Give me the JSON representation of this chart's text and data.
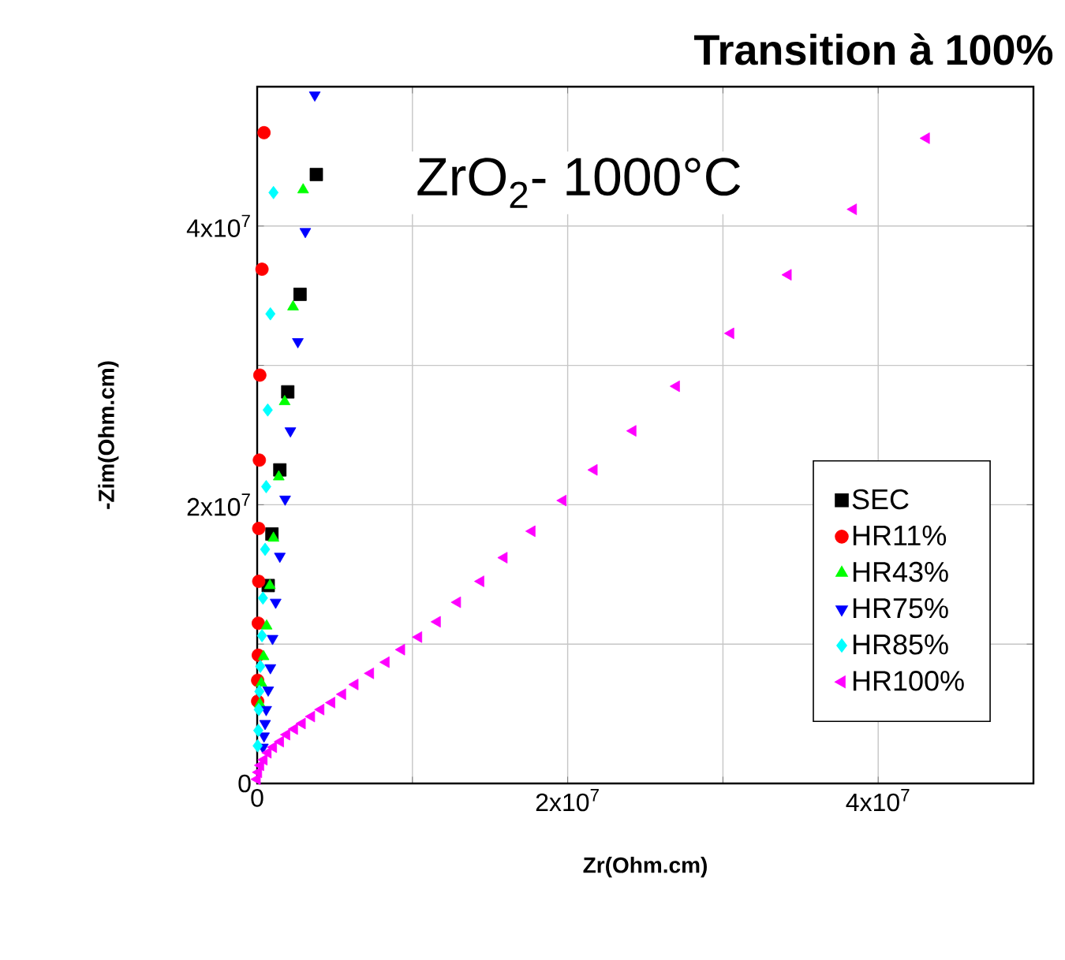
{
  "chart_data": {
    "type": "scatter",
    "title": "**Transition à 100%**",
    "xlabel": "**Zr(Ohm.cm)**",
    "ylabel": "**-Zim(Ohm.cm)**",
    "annotations": [
      "ZrO$_{2}$- 1000°C"
    ],
    "xlim": [
      0,
      50000000.0
    ],
    "ylim": [
      0,
      50000000.0
    ],
    "xticks": [
      0,
      {
        "value": 10000000.0,
        "label": null
      },
      {
        "value": 20000000.0,
        "label": "2x10$^{7}$"
      },
      {
        "value": 30000000.0,
        "label": null
      },
      {
        "value": 40000000.0,
        "label": "4x10$^{7}$"
      },
      {
        "value": 50000000.0,
        "label": null
      }
    ],
    "yticks": [
      0,
      {
        "value": 10000000.0,
        "label": null
      },
      {
        "value": 20000000.0,
        "label": "2x10$^{7}$"
      },
      {
        "value": 30000000.0,
        "label": null
      },
      {
        "value": 40000000.0,
        "label": "4x10$^{7}$"
      },
      {
        "value": 50000000.0,
        "label": null
      }
    ],
    "grid": true,
    "legend": "right",
    "series": [
      {
        "name": "SEC",
        "color": "#000000",
        "marker": "square",
        "x": [
          3810000.0,
          2760000.0,
          1970000.0,
          1460000.0,
          950000.0,
          710000.0
        ],
        "values": [
          43700000.0,
          35100000.0,
          28100000.0,
          22500000.0,
          17900000.0,
          14200000.0
        ]
      },
      {
        "name": "HR11%",
        "color": "#ff0000",
        "marker": "circle",
        "x": [
          440000.0,
          310000.0,
          170000.0,
          140000.0,
          100000.0,
          100000.0,
          70000.0,
          70000.0,
          30000.0,
          30000.0
        ],
        "values": [
          46700000.0,
          36900000.0,
          29300000.0,
          23200000.0,
          18300000.0,
          14500000.0,
          11500000.0,
          9200000.0,
          7400000.0,
          5900000.0
        ]
      },
      {
        "name": "HR43%",
        "color": "#00ff00",
        "marker": "triangle",
        "x": [
          2960000.0,
          2310000.0,
          1770000.0,
          1390000.0,
          1050000.0,
          820000.0,
          610000.0,
          410000.0,
          270000.0,
          170000.0
        ],
        "values": [
          42600000.0,
          34200000.0,
          27400000.0,
          22000000.0,
          17600000.0,
          14200000.0,
          11300000.0,
          9100000.0,
          7200000.0,
          5700000.0
        ]
      },
      {
        "name": "HR75%",
        "color": "#0000ff",
        "marker": "triangle-down",
        "x": [
          3710000.0,
          3100000.0,
          2620000.0,
          2140000.0,
          1800000.0,
          1460000.0,
          1190000.0,
          990000.0,
          850000.0,
          710000.0,
          580000.0,
          510000.0,
          440000.0,
          370000.0
        ],
        "values": [
          49400000.0,
          39600000.0,
          31700000.0,
          25300000.0,
          20400000.0,
          16300000.0,
          13000000.0,
          10400000.0,
          8300000.0,
          6700000.0,
          5300000.0,
          4300000.0,
          3400000.0,
          2600000.0
        ]
      },
      {
        "name": "HR85%",
        "color": "#00ffff",
        "marker": "diamond",
        "x": [
          1050000.0,
          850000.0,
          680000.0,
          580000.0,
          510000.0,
          370000.0,
          310000.0,
          200000.0,
          140000.0,
          100000.0,
          70000.0,
          30000.0
        ],
        "values": [
          42400000.0,
          33700000.0,
          26800000.0,
          21300000.0,
          16800000.0,
          13300000.0,
          10600000.0,
          8400000.0,
          6600000.0,
          5300000.0,
          3800000.0,
          2700000.0
        ]
      },
      {
        "name": "HR100%",
        "color": "#ff00ff",
        "marker": "triangle-left",
        "x": [
          43100000.0,
          38400000.0,
          34200000.0,
          30500000.0,
          27000000.0,
          24200000.0,
          21700000.0,
          19700000.0,
          17700000.0,
          15900000.0,
          14400000.0,
          12900000.0,
          11600000.0,
          10400000.0,
          9300000.0,
          8300000.0,
          7300000.0,
          6300000.0,
          5500000.0,
          4800000.0,
          4100000.0,
          3500000.0,
          2900000.0,
          2400000.0,
          1900000.0,
          1500000.0,
          1050000.0,
          700000.0,
          440000.0,
          220000.0,
          90000.0,
          0
        ],
        "values": [
          46300000.0,
          41200000.0,
          36500000.0,
          32300000.0,
          28500000.0,
          25300000.0,
          22500000.0,
          20300000.0,
          18100000.0,
          16200000.0,
          14500000.0,
          13000000.0,
          11600000.0,
          10500000.0,
          9600000.0,
          8700000.0,
          7900000.0,
          7100000.0,
          6400000.0,
          5800000.0,
          5300000.0,
          4800000.0,
          4300000.0,
          3900000.0,
          3500000.0,
          3000000.0,
          2600000.0,
          2200000.0,
          1700000.0,
          1300000.0,
          800000.0,
          300000.0
        ]
      }
    ]
  }
}
